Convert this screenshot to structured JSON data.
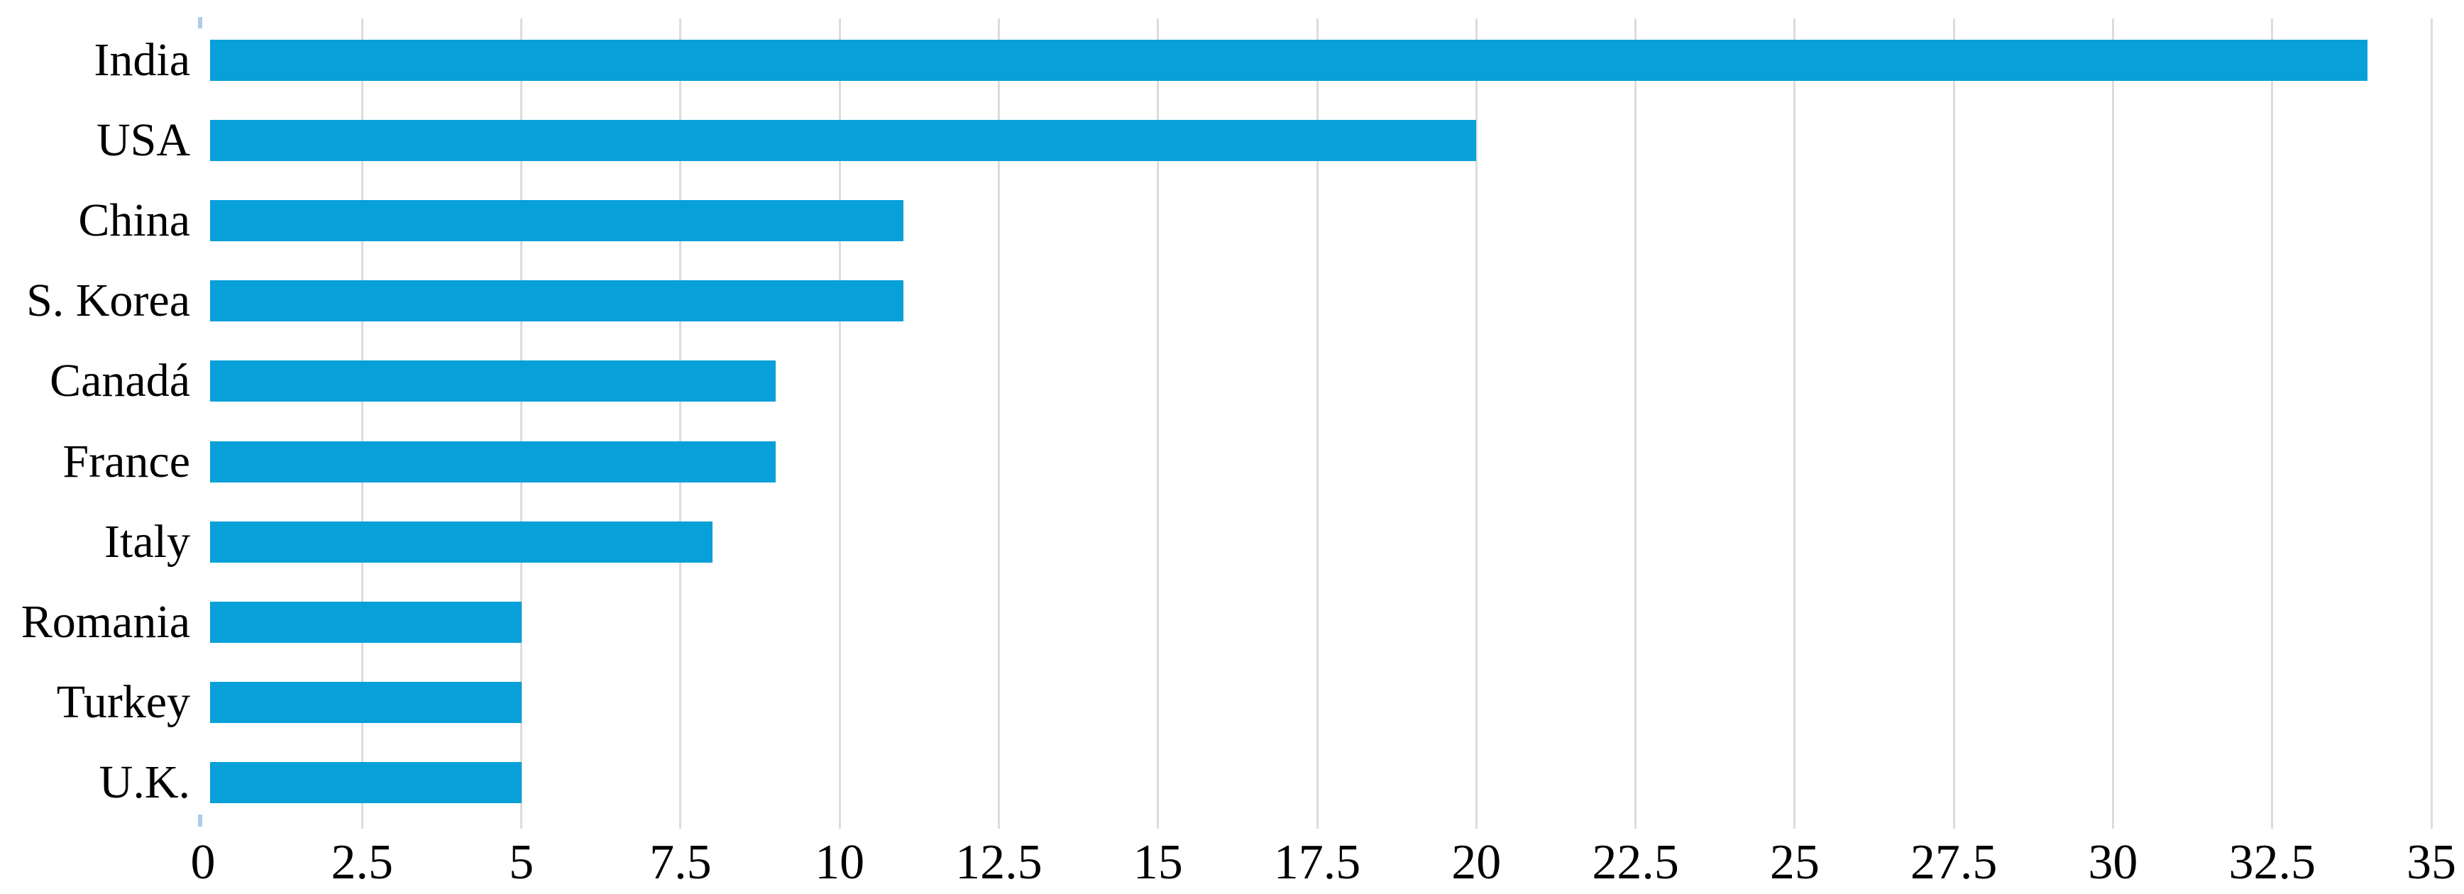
{
  "figure": {
    "background": "#FFFFFF",
    "title": ""
  },
  "chart_data": {
    "type": "bar",
    "orientation": "horizontal",
    "title": "",
    "xlabel": "",
    "ylabel": "",
    "categories": [
      "India",
      "USA",
      "China",
      "S. Korea",
      "Canadá",
      "France",
      "Italy",
      "Romania",
      "Turkey",
      "U.K."
    ],
    "values": [
      34,
      20,
      11,
      11,
      9,
      9,
      8,
      5,
      5,
      5
    ],
    "xlim": [
      0,
      35
    ],
    "xticks": [
      0,
      2.5,
      5,
      7.5,
      10,
      12.5,
      15,
      17.5,
      20,
      22.5,
      25,
      27.5,
      30,
      32.5,
      35
    ],
    "xtick_labels": [
      "0",
      "2.5",
      "5",
      "7.5",
      "10",
      "12.5",
      "15",
      "17.5",
      "20",
      "22.5",
      "25",
      "27.5",
      "30",
      "32.5",
      "35"
    ],
    "grid": "vertical-major",
    "legend_position": "none",
    "colors": {
      "bar": "#08A0D8",
      "gridline": "#DCDCDC",
      "tick_text": "#000000",
      "label_text": "#000000",
      "zero_tick_marker": "#AECCE8",
      "background": "#FFFFFF"
    }
  }
}
